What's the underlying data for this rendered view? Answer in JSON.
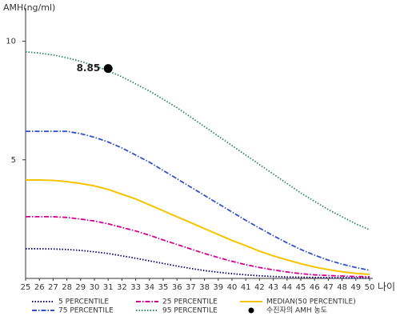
{
  "chart_data": {
    "type": "line",
    "ylabel": "AMH(ng/ml)",
    "xlabel": "나이",
    "x": [
      25,
      26,
      27,
      28,
      29,
      30,
      31,
      32,
      33,
      34,
      35,
      36,
      37,
      38,
      39,
      40,
      41,
      42,
      43,
      44,
      45,
      46,
      47,
      48,
      49,
      50
    ],
    "xlim": [
      25,
      50
    ],
    "xticks": [
      25,
      26,
      27,
      28,
      29,
      30,
      31,
      32,
      33,
      34,
      35,
      36,
      37,
      38,
      39,
      40,
      41,
      42,
      43,
      44,
      45,
      46,
      47,
      48,
      49,
      50
    ],
    "ylim": [
      0,
      11.4
    ],
    "yticks": [
      5,
      10
    ],
    "series": [
      {
        "name": "5 PERCENTILE",
        "color": "#00007a",
        "dash": "dotted",
        "values": [
          1.25,
          1.25,
          1.24,
          1.22,
          1.18,
          1.12,
          1.05,
          0.95,
          0.85,
          0.74,
          0.63,
          0.52,
          0.42,
          0.33,
          0.26,
          0.2,
          0.15,
          0.11,
          0.08,
          0.06,
          0.05,
          0.04,
          0.03,
          0.03,
          0.02,
          0.02
        ]
      },
      {
        "name": "25 PERCENTILE",
        "color": "#d4008f",
        "dash": "dashdot",
        "values": [
          2.6,
          2.6,
          2.6,
          2.57,
          2.5,
          2.42,
          2.3,
          2.15,
          2.0,
          1.82,
          1.62,
          1.43,
          1.24,
          1.05,
          0.88,
          0.72,
          0.58,
          0.46,
          0.36,
          0.27,
          0.2,
          0.15,
          0.12,
          0.1,
          0.08,
          0.07
        ]
      },
      {
        "name": "MEDIAN(50 PERCENTILE)",
        "color": "#f5c400",
        "dash": "solid",
        "values": [
          4.15,
          4.15,
          4.13,
          4.08,
          4.0,
          3.9,
          3.75,
          3.55,
          3.35,
          3.1,
          2.85,
          2.6,
          2.35,
          2.1,
          1.85,
          1.6,
          1.38,
          1.15,
          0.95,
          0.78,
          0.62,
          0.48,
          0.37,
          0.28,
          0.21,
          0.17
        ]
      },
      {
        "name": "75 PERCENTILE",
        "color": "#3352c8",
        "dash": "dashdot",
        "values": [
          6.2,
          6.2,
          6.2,
          6.2,
          6.1,
          5.95,
          5.75,
          5.5,
          5.2,
          4.9,
          4.55,
          4.2,
          3.85,
          3.5,
          3.15,
          2.8,
          2.45,
          2.12,
          1.8,
          1.5,
          1.22,
          0.98,
          0.77,
          0.6,
          0.46,
          0.34
        ]
      },
      {
        "name": "95 PERCENTILE",
        "color": "#2e8b57",
        "dash": "dotted",
        "values": [
          9.55,
          9.5,
          9.42,
          9.3,
          9.15,
          8.97,
          8.75,
          8.5,
          8.2,
          7.9,
          7.55,
          7.2,
          6.8,
          6.4,
          6.0,
          5.6,
          5.2,
          4.8,
          4.4,
          4.0,
          3.6,
          3.25,
          2.9,
          2.6,
          2.3,
          2.05
        ]
      }
    ],
    "marker": {
      "name": "수진자의 AMH 농도",
      "color": "#000000",
      "x": 31,
      "y": 8.85
    }
  }
}
